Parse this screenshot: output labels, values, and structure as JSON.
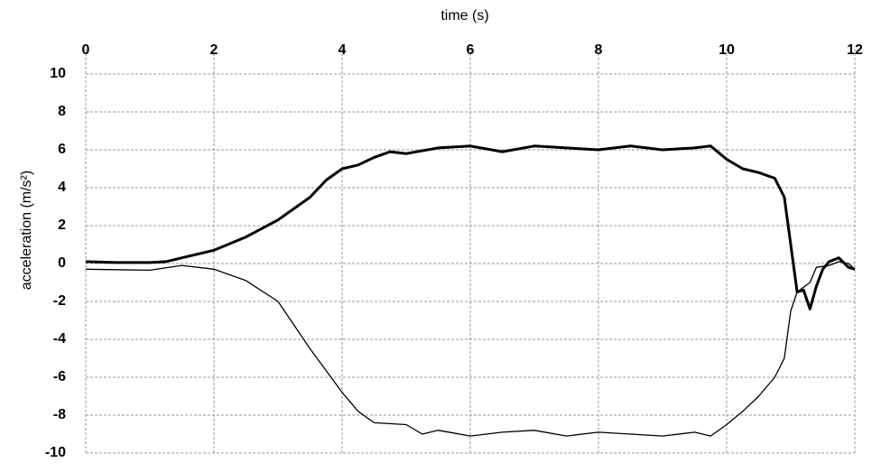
{
  "chart_data": {
    "type": "line",
    "xlabel": "time (s)",
    "ylabel": "acceleration (m/s²)",
    "xlim": [
      0,
      12
    ],
    "xticks": [
      0,
      2,
      4,
      6,
      8,
      10,
      12
    ],
    "ylim": [
      -10,
      10
    ],
    "yticks": [
      -10,
      -8,
      -6,
      -4,
      -2,
      0,
      2,
      4,
      6,
      8,
      10
    ],
    "grid": true,
    "x_axis_position": "top",
    "series": [
      {
        "color": "#000000",
        "width": 3,
        "x": [
          0,
          0.5,
          1,
          1.25,
          1.5,
          2,
          2.5,
          3,
          3.5,
          3.75,
          4,
          4.25,
          4.5,
          4.75,
          5,
          5.5,
          6,
          6.5,
          7,
          7.5,
          8,
          8.5,
          9,
          9.5,
          9.75,
          10,
          10.25,
          10.5,
          10.75,
          10.9,
          11,
          11.1,
          11.2,
          11.3,
          11.4,
          11.5,
          11.6,
          11.75,
          11.9,
          12
        ],
        "values": [
          0.1,
          0.05,
          0.05,
          0.1,
          0.3,
          0.7,
          1.4,
          2.3,
          3.5,
          4.4,
          5.0,
          5.2,
          5.6,
          5.9,
          5.8,
          6.1,
          6.2,
          5.9,
          6.2,
          6.1,
          6.0,
          6.2,
          6.0,
          6.1,
          6.2,
          5.5,
          5.0,
          4.8,
          4.5,
          3.5,
          1,
          -1.5,
          -1.4,
          -2.4,
          -1.2,
          -0.3,
          0.1,
          0.3,
          -0.2,
          -0.3
        ]
      },
      {
        "color": "#000000",
        "width": 1.3,
        "x": [
          0,
          1,
          1.5,
          2,
          2.5,
          3,
          3.5,
          4,
          4.25,
          4.5,
          5,
          5.25,
          5.5,
          6,
          6.5,
          7,
          7.5,
          8,
          8.5,
          9,
          9.5,
          9.75,
          10,
          10.25,
          10.5,
          10.75,
          10.9,
          11,
          11.1,
          11.3,
          11.4,
          11.6,
          11.75,
          11.9,
          12
        ],
        "values": [
          -0.3,
          -0.35,
          -0.1,
          -0.3,
          -0.9,
          -2.0,
          -4.5,
          -6.8,
          -7.8,
          -8.4,
          -8.5,
          -9.0,
          -8.8,
          -9.1,
          -8.9,
          -8.8,
          -9.1,
          -8.9,
          -9.0,
          -9.1,
          -8.9,
          -9.1,
          -8.5,
          -7.8,
          -7.0,
          -6.0,
          -5.0,
          -2.5,
          -1.5,
          -1.0,
          -0.2,
          -0.1,
          0.1,
          0,
          -0.3
        ]
      }
    ]
  }
}
